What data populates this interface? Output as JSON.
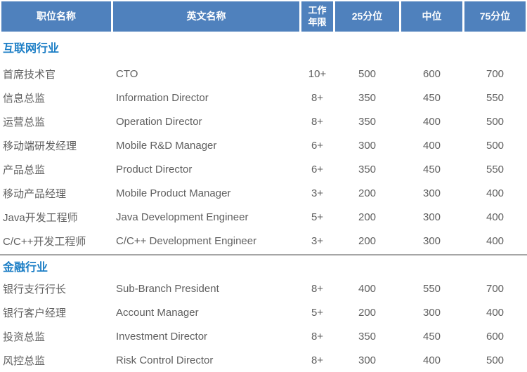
{
  "colors": {
    "header_bg": "#4F81BD",
    "header_text": "#FFFFFF",
    "section_title": "#1A7DC5",
    "body_text": "#5F5F5F",
    "divider": "#A6A6A6",
    "background": "#FFFFFF"
  },
  "table": {
    "columns": [
      {
        "label": "职位名称"
      },
      {
        "label": "英文名称"
      },
      {
        "label": "工作年限",
        "lines": [
          "工作",
          "年限"
        ]
      },
      {
        "label": "25分位"
      },
      {
        "label": "中位"
      },
      {
        "label": "75分位"
      }
    ],
    "sections": [
      {
        "title": "互联网行业",
        "rows": [
          [
            "首席技术官",
            "CTO",
            "10+",
            "500",
            "600",
            "700"
          ],
          [
            "信息总监",
            "Information Director",
            "8+",
            "350",
            "450",
            "550"
          ],
          [
            "运营总监",
            "Operation Director",
            "8+",
            "350",
            "400",
            "500"
          ],
          [
            "移动端研发经理",
            "Mobile R&D Manager",
            "6+",
            "300",
            "400",
            "500"
          ],
          [
            "产品总监",
            "Product Director",
            "6+",
            "350",
            "450",
            "550"
          ],
          [
            "移动产品经理",
            "Mobile Product Manager",
            "3+",
            "200",
            "300",
            "400"
          ],
          [
            "Java开发工程师",
            "Java Development Engineer",
            "5+",
            "200",
            "300",
            "400"
          ],
          [
            "C/C++开发工程师",
            "C/C++ Development Engineer",
            "3+",
            "200",
            "300",
            "400"
          ]
        ]
      },
      {
        "title": "金融行业",
        "rows": [
          [
            "银行支行行长",
            "Sub-Branch President",
            "8+",
            "400",
            "550",
            "700"
          ],
          [
            "银行客户经理",
            "Account Manager",
            "5+",
            "200",
            "300",
            "400"
          ],
          [
            "投资总监",
            "Investment Director",
            "8+",
            "350",
            "450",
            "600"
          ],
          [
            "风控总监",
            "Risk Control Director",
            "8+",
            "300",
            "400",
            "500"
          ]
        ]
      }
    ]
  }
}
